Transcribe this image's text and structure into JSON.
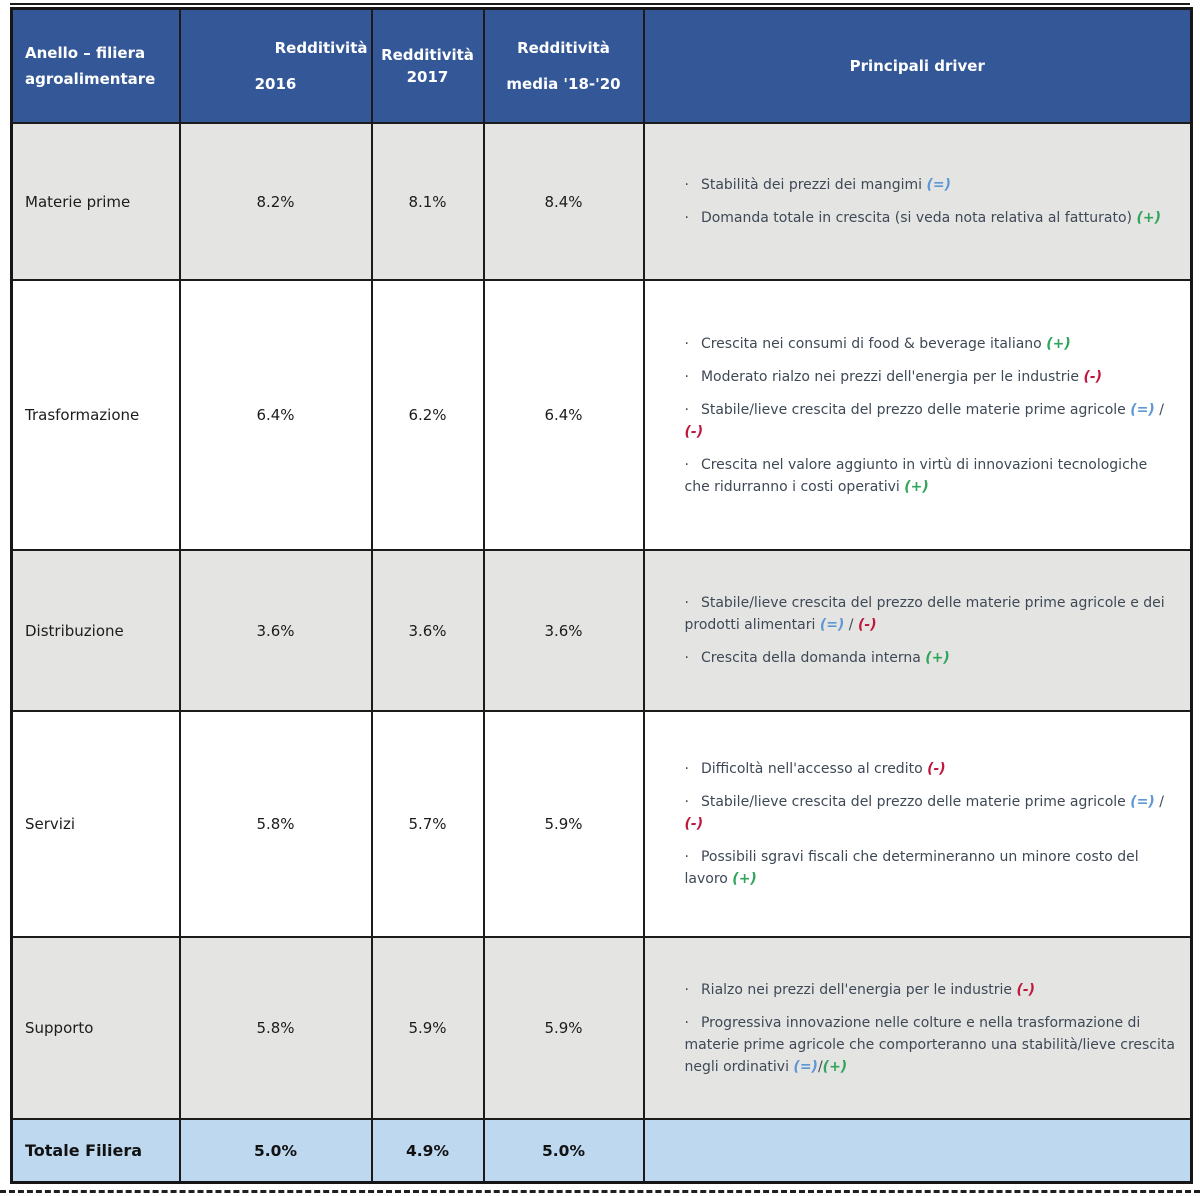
{
  "bullet": "·",
  "colors": {
    "header_bg": "#345897",
    "header_text": "#ffffff",
    "row_gray": "#e4e4e3",
    "row_white": "#ffffff",
    "total_bg": "#bdd8ef",
    "border": "#1b1b1b",
    "driver_text": "#3e4955",
    "symbol_equal": "#5e97d3",
    "symbol_plus": "#2fa45a",
    "symbol_minus": "#c2173c"
  },
  "symbols": {
    "eq": {
      "glyph": "(=)",
      "color": "#5e97d3"
    },
    "plus": {
      "glyph": "(+)",
      "color": "#2fa45a"
    },
    "minus": {
      "glyph": "(-)",
      "color": "#c2173c"
    }
  },
  "header": {
    "col1": [
      "Anello – filiera",
      "agroalimentare"
    ],
    "col2": [
      "Redditività",
      "2016"
    ],
    "col3": [
      "Redditività",
      "2017"
    ],
    "col4": [
      "Redditività",
      "media '18-'20"
    ],
    "col5": "Principali driver"
  },
  "rows": [
    {
      "label": "Materie prime",
      "values": [
        "8.2%",
        "8.1%",
        "8.4%"
      ],
      "drivers": [
        [
          {
            "t": "Stabilità dei prezzi dei mangimi "
          },
          {
            "s": "eq"
          }
        ],
        [
          {
            "t": "Domanda totale in crescita (si veda nota relativa al fatturato) "
          },
          {
            "s": "plus"
          }
        ]
      ]
    },
    {
      "label": "Trasformazione",
      "values": [
        "6.4%",
        "6.2%",
        "6.4%"
      ],
      "drivers": [
        [
          {
            "t": "Crescita nei consumi di food & beverage italiano "
          },
          {
            "s": "plus"
          }
        ],
        [
          {
            "t": "Moderato rialzo nei prezzi dell'energia per le industrie "
          },
          {
            "s": "minus"
          }
        ],
        [
          {
            "t": "Stabile/lieve crescita del prezzo delle materie prime agricole "
          },
          {
            "s": "eq"
          },
          {
            "t": " / "
          },
          {
            "s": "minus"
          }
        ],
        [
          {
            "t": "Crescita nel valore aggiunto in virtù di innovazioni tecnologiche che ridurranno i costi operativi "
          },
          {
            "s": "plus"
          }
        ]
      ]
    },
    {
      "label": "Distribuzione",
      "values": [
        "3.6%",
        "3.6%",
        "3.6%"
      ],
      "drivers": [
        [
          {
            "t": "Stabile/lieve crescita del prezzo delle materie prime agricole e dei prodotti alimentari "
          },
          {
            "s": "eq"
          },
          {
            "t": " / "
          },
          {
            "s": "minus"
          }
        ],
        [
          {
            "t": "Crescita della domanda interna "
          },
          {
            "s": "plus"
          }
        ]
      ]
    },
    {
      "label": "Servizi",
      "values": [
        "5.8%",
        "5.7%",
        "5.9%"
      ],
      "drivers": [
        [
          {
            "t": "Difficoltà nell'accesso al credito "
          },
          {
            "s": "minus"
          }
        ],
        [
          {
            "t": "Stabile/lieve crescita del prezzo delle materie prime agricole "
          },
          {
            "s": "eq"
          },
          {
            "t": " / "
          },
          {
            "s": "minus"
          }
        ],
        [
          {
            "t": "Possibili sgravi fiscali che determineranno un minore costo del lavoro "
          },
          {
            "s": "plus"
          }
        ]
      ]
    },
    {
      "label": "Supporto",
      "values": [
        "5.8%",
        "5.9%",
        "5.9%"
      ],
      "drivers": [
        [
          {
            "t": "Rialzo nei prezzi dell'energia per le industrie "
          },
          {
            "s": "minus"
          }
        ],
        [
          {
            "t": "Progressiva innovazione nelle colture e nella trasformazione di materie prime agricole che comporteranno una stabilità/lieve crescita negli ordinativi "
          },
          {
            "s": "eq"
          },
          {
            "t": "/"
          },
          {
            "s": "plus"
          }
        ]
      ]
    }
  ],
  "total": {
    "label": "Totale Filiera",
    "values": [
      "5.0%",
      "4.9%",
      "5.0%"
    ]
  }
}
